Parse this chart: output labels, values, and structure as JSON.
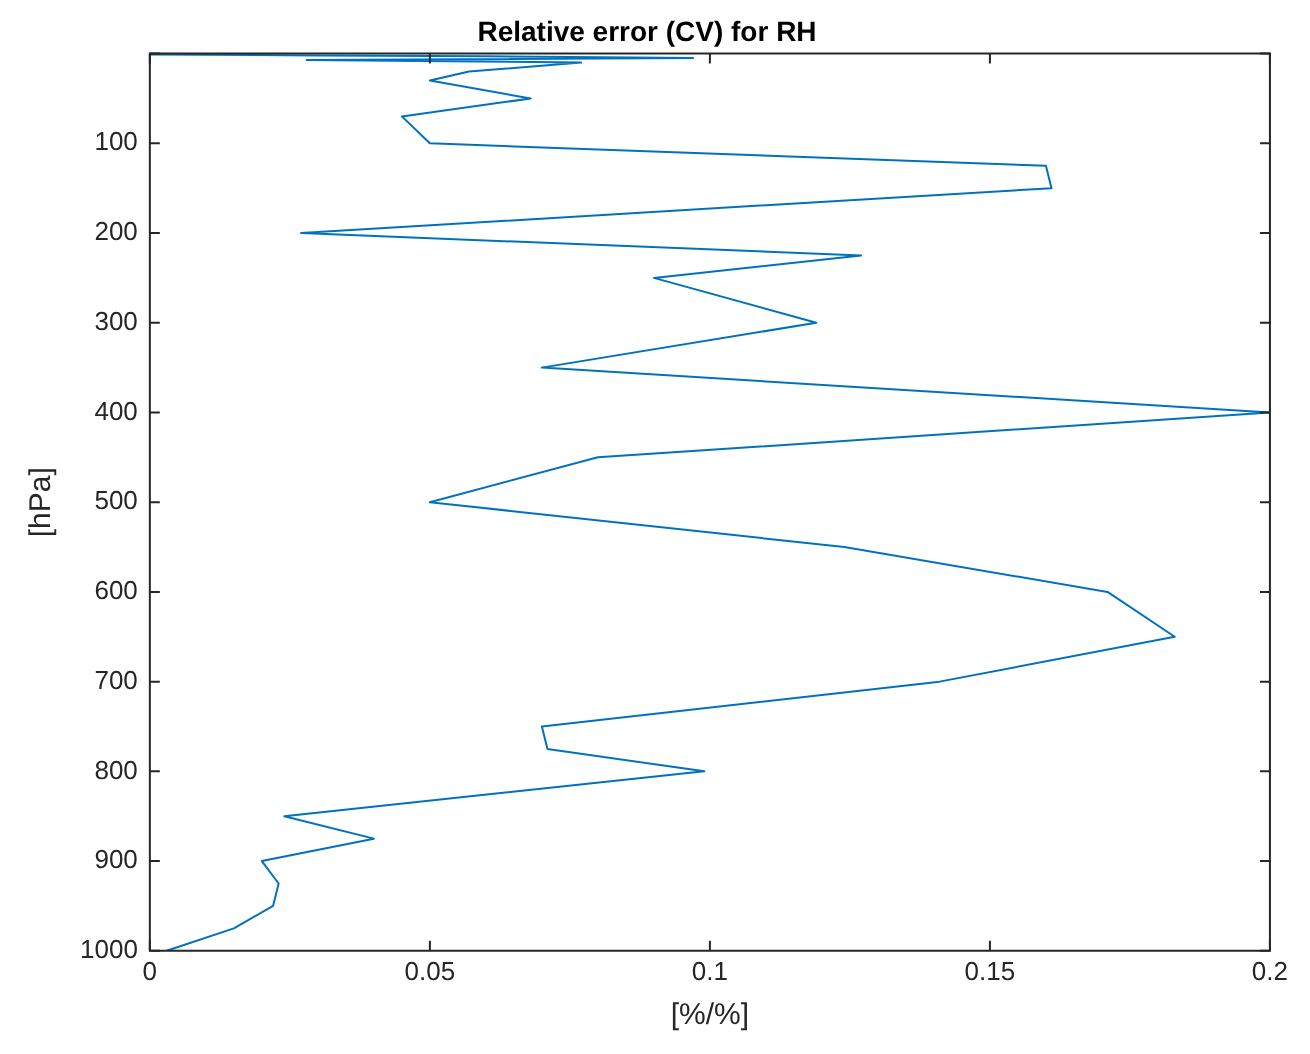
{
  "chart_data": {
    "type": "line",
    "title": "Relative error (CV) for RH",
    "xlabel": "[%/%]",
    "ylabel": "[hPa]",
    "series": [
      {
        "color": "#0072bd",
        "x": [
          0.003,
          0.015,
          0.022,
          0.023,
          0.02,
          0.04,
          0.024,
          0.099,
          0.071,
          0.07,
          0.141,
          0.183,
          0.171,
          0.124,
          0.05,
          0.08,
          0.2,
          0.07,
          0.119,
          0.09,
          0.127,
          0.027,
          0.161,
          0.16,
          0.05,
          0.045,
          0.068,
          0.05,
          0.057,
          0.077,
          0.028,
          0.097,
          0.06,
          0.03,
          0
        ],
        "values": [
          1000,
          975,
          950,
          925,
          900,
          875,
          850,
          800,
          775,
          750,
          700,
          650,
          600,
          550,
          500,
          450,
          400,
          350,
          300,
          250,
          225,
          200,
          150,
          125,
          100,
          70,
          50,
          30,
          20,
          10,
          7,
          5,
          3,
          2,
          1
        ]
      }
    ],
    "xlim": [
      0,
      0.2
    ],
    "xticks": [
      0,
      0.05,
      0.1,
      0.15,
      0.2
    ],
    "ylim": [
      1000,
      0
    ],
    "yticks": [
      {
        "value": 0,
        "label": null
      },
      100,
      200,
      300,
      400,
      500,
      600,
      700,
      800,
      900,
      1000
    ],
    "grid": false,
    "legend": false,
    "marker": "none",
    "line_style": "solid"
  }
}
